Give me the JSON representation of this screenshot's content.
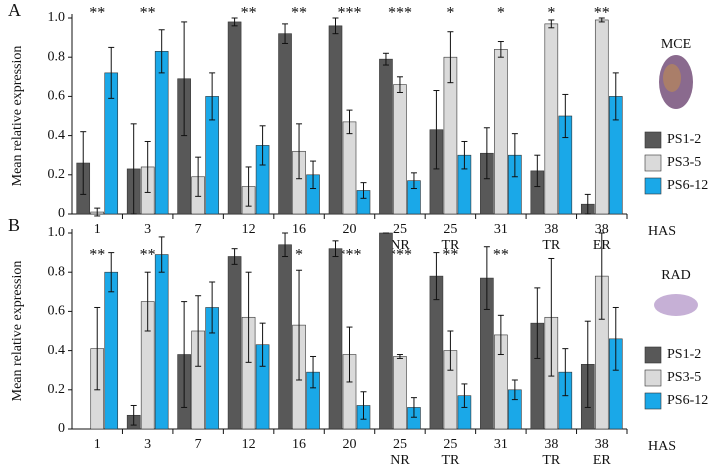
{
  "chart_data": [
    {
      "type": "bar",
      "panel": "A",
      "inset_label": "MCE",
      "ylabel": "Mean relative expression",
      "xlabel": "HAS",
      "categories": [
        [
          "1"
        ],
        [
          "3"
        ],
        [
          "7"
        ],
        [
          "12"
        ],
        [
          "16"
        ],
        [
          "20"
        ],
        [
          "25",
          "NR"
        ],
        [
          "25",
          "TR"
        ],
        [
          "31"
        ],
        [
          "38",
          "TR"
        ],
        [
          "38",
          "ER"
        ]
      ],
      "series": [
        {
          "name": "PS1-2",
          "color": "#585858",
          "values": [
            0.26,
            0.23,
            0.69,
            0.98,
            0.92,
            0.96,
            0.79,
            0.43,
            0.31,
            0.22,
            0.05
          ],
          "errors": [
            0.16,
            0.23,
            0.29,
            0.02,
            0.05,
            0.04,
            0.03,
            0.2,
            0.13,
            0.08,
            0.05
          ]
        },
        {
          "name": "PS3-5",
          "color": "#dadada",
          "values": [
            0.01,
            0.24,
            0.19,
            0.14,
            0.32,
            0.47,
            0.66,
            0.8,
            0.84,
            0.97,
            0.99
          ],
          "errors": [
            0.02,
            0.13,
            0.1,
            0.1,
            0.14,
            0.06,
            0.04,
            0.13,
            0.04,
            0.02,
            0.01
          ]
        },
        {
          "name": "PS6-12",
          "color": "#1aa8e8",
          "values": [
            0.72,
            0.83,
            0.6,
            0.35,
            0.2,
            0.12,
            0.17,
            0.3,
            0.3,
            0.5,
            0.6
          ],
          "errors": [
            0.13,
            0.11,
            0.12,
            0.1,
            0.07,
            0.04,
            0.04,
            0.07,
            0.11,
            0.11,
            0.12
          ]
        }
      ],
      "annotations": [
        "**",
        "**",
        null,
        "**",
        "**",
        "***",
        "***",
        "*",
        "*",
        "*",
        "**"
      ],
      "ylim": [
        0,
        1
      ],
      "yticks": [
        0,
        0.2,
        0.4,
        0.6,
        0.8,
        {
          "value": 1,
          "label": "1.0"
        }
      ]
    },
    {
      "type": "bar",
      "panel": "B",
      "inset_label": "RAD",
      "ylabel": "Mean relative expression",
      "xlabel": "HAS",
      "categories": [
        [
          "1"
        ],
        [
          "3"
        ],
        [
          "7"
        ],
        [
          "12"
        ],
        [
          "16"
        ],
        [
          "20"
        ],
        [
          "25",
          "NR"
        ],
        [
          "25",
          "TR"
        ],
        [
          "31"
        ],
        [
          "38",
          "TR"
        ],
        [
          "38",
          "ER"
        ]
      ],
      "series": [
        {
          "name": "PS1-2",
          "color": "#585858",
          "values": [
            0,
            0.07,
            0.38,
            0.88,
            0.94,
            0.92,
            1,
            0.78,
            0.77,
            0.54,
            0.33
          ],
          "errors": [
            0,
            0.05,
            0.27,
            0.04,
            0.06,
            0.04,
            0,
            0.12,
            0.16,
            0.18,
            0.22
          ]
        },
        {
          "name": "PS3-5",
          "color": "#dadada",
          "values": [
            0.41,
            0.65,
            0.5,
            0.57,
            0.53,
            0.38,
            0.37,
            0.4,
            0.48,
            0.57,
            0.78
          ],
          "errors": [
            0.21,
            0.15,
            0.18,
            0.23,
            0.28,
            0.14,
            0.01,
            0.1,
            0.1,
            0.3,
            0.22
          ]
        },
        {
          "name": "PS6-12",
          "color": "#1aa8e8",
          "values": [
            0.8,
            0.89,
            0.62,
            0.43,
            0.29,
            0.12,
            0.11,
            0.17,
            0.2,
            0.29,
            0.46
          ],
          "errors": [
            0.1,
            0.09,
            0.13,
            0.11,
            0.08,
            0.07,
            0.05,
            0.06,
            0.05,
            0.12,
            0.16
          ]
        }
      ],
      "annotations": [
        "**",
        "**",
        null,
        null,
        "*",
        "***",
        "***",
        "**",
        "**",
        null,
        null
      ],
      "ylim": [
        0,
        1
      ],
      "yticks": [
        0,
        0.2,
        0.4,
        0.6,
        0.8,
        {
          "value": 1,
          "label": "1.0"
        }
      ]
    }
  ]
}
